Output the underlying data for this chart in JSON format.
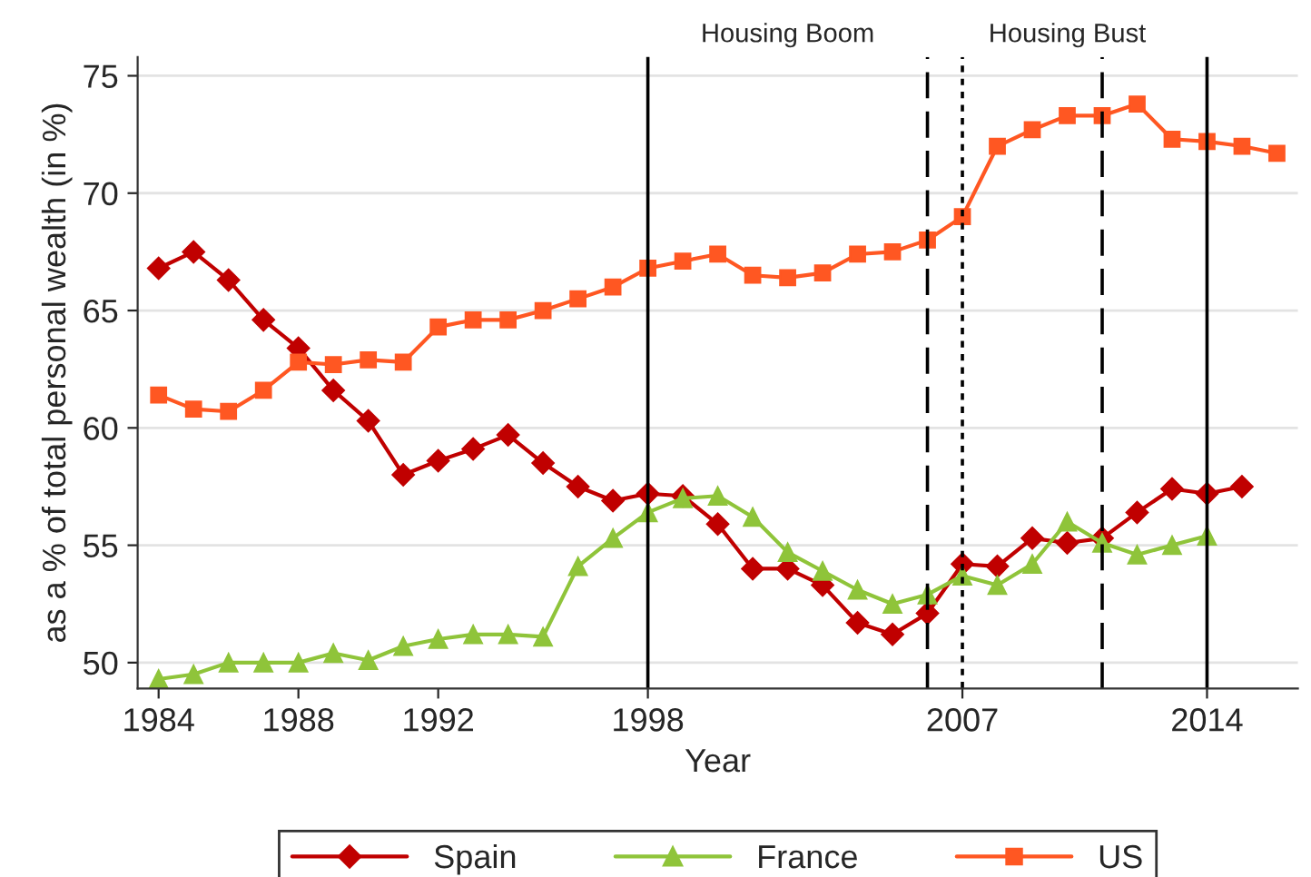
{
  "chart_data": {
    "type": "line",
    "xlabel": "Year",
    "ylabel": "as a % of total personal wealth (in %)",
    "xlim": [
      1983.4,
      2016.6
    ],
    "ylim": [
      48.9,
      75.8
    ],
    "xticks": [
      1984,
      1988,
      1992,
      1998,
      2007,
      2014
    ],
    "yticks": [
      50,
      55,
      60,
      65,
      70,
      75
    ],
    "grid": "y",
    "legend": "bottom",
    "line_style": "solid",
    "series": [
      {
        "name": "Spain",
        "color": "#c00000",
        "marker": "diamond",
        "x": [
          1984,
          1985,
          1986,
          1987,
          1988,
          1989,
          1990,
          1991,
          1992,
          1993,
          1994,
          1995,
          1996,
          1997,
          1998,
          1999,
          2000,
          2001,
          2002,
          2003,
          2004,
          2005,
          2006,
          2007,
          2008,
          2009,
          2010,
          2011,
          2012,
          2013,
          2014,
          2015
        ],
        "values": [
          66.8,
          67.5,
          66.3,
          64.6,
          63.4,
          61.6,
          60.3,
          58.0,
          58.6,
          59.1,
          59.7,
          58.5,
          57.5,
          56.9,
          57.2,
          57.1,
          55.9,
          54.0,
          54.0,
          53.3,
          51.7,
          51.2,
          52.1,
          54.2,
          54.1,
          55.3,
          55.1,
          55.3,
          56.4,
          57.4,
          57.2,
          57.5
        ]
      },
      {
        "name": "France",
        "color": "#8fc43a",
        "marker": "triangle",
        "x": [
          1984,
          1985,
          1986,
          1987,
          1988,
          1989,
          1990,
          1991,
          1992,
          1993,
          1994,
          1995,
          1996,
          1997,
          1998,
          1999,
          2000,
          2001,
          2002,
          2003,
          2004,
          2005,
          2006,
          2007,
          2008,
          2009,
          2010,
          2011,
          2012,
          2013,
          2014
        ],
        "values": [
          49.3,
          49.5,
          50.0,
          50.0,
          50.0,
          50.4,
          50.1,
          50.7,
          51.0,
          51.2,
          51.2,
          51.1,
          54.1,
          55.3,
          56.4,
          57.0,
          57.1,
          56.2,
          54.7,
          53.9,
          53.1,
          52.5,
          52.9,
          53.7,
          53.3,
          54.2,
          56.0,
          55.1,
          54.6,
          55.0,
          55.4
        ]
      },
      {
        "name": "US",
        "color": "#ff5722",
        "marker": "square",
        "x": [
          1984,
          1985,
          1986,
          1987,
          1988,
          1989,
          1990,
          1991,
          1992,
          1993,
          1994,
          1995,
          1996,
          1997,
          1998,
          1999,
          2000,
          2001,
          2002,
          2003,
          2004,
          2005,
          2006,
          2007,
          2008,
          2009,
          2010,
          2011,
          2012,
          2013,
          2014,
          2015,
          2016
        ],
        "values": [
          61.4,
          60.8,
          60.7,
          61.6,
          62.8,
          62.7,
          62.9,
          62.8,
          64.3,
          64.6,
          64.6,
          65.0,
          65.5,
          66.0,
          66.8,
          67.1,
          67.4,
          66.5,
          66.4,
          66.6,
          67.4,
          67.5,
          68.0,
          69.0,
          72.0,
          72.7,
          73.3,
          73.3,
          73.8,
          72.3,
          72.2,
          72.0,
          71.7
        ]
      }
    ],
    "ref_lines": [
      {
        "axis": "x",
        "value": 1998,
        "color": "#000000",
        "line_style": "solid"
      },
      {
        "axis": "x",
        "value": 2006,
        "color": "#000000",
        "line_style": "dashed"
      },
      {
        "axis": "x",
        "value": 2007,
        "color": "#000000",
        "line_style": "dotted"
      },
      {
        "axis": "x",
        "value": 2011,
        "color": "#000000",
        "line_style": "dashed"
      },
      {
        "axis": "x",
        "value": 2014,
        "color": "#000000",
        "line_style": "solid"
      }
    ],
    "annotations": [
      "Housing Boom",
      "Housing Bust"
    ]
  }
}
